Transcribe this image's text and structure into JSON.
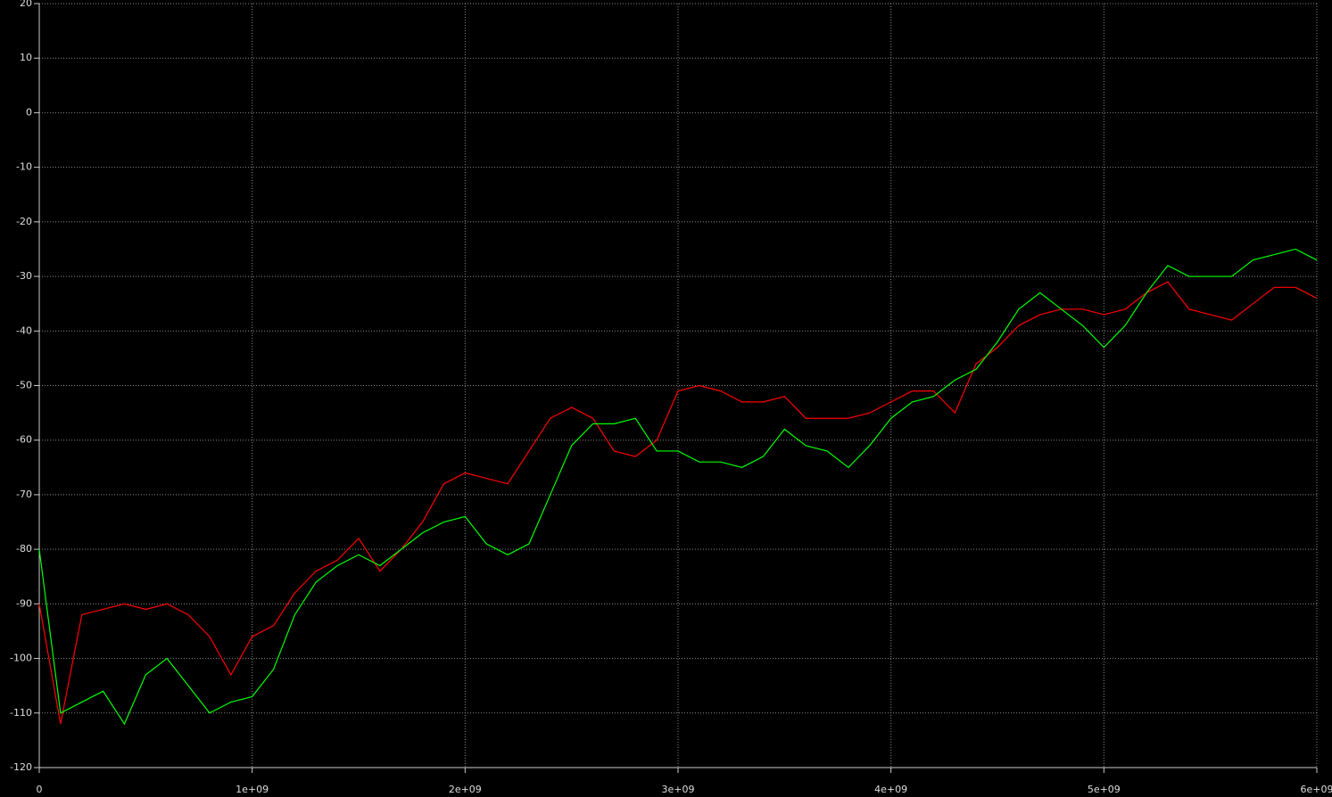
{
  "chart_data": {
    "type": "line",
    "x": [
      0,
      100000000,
      200000000,
      300000000,
      400000000,
      500000000,
      600000000,
      700000000,
      800000000,
      900000000,
      1000000000,
      1100000000,
      1200000000,
      1300000000,
      1400000000,
      1500000000,
      1600000000,
      1700000000,
      1800000000,
      1900000000,
      2000000000,
      2100000000,
      2200000000,
      2300000000,
      2400000000,
      2500000000,
      2600000000,
      2700000000,
      2800000000,
      2900000000,
      3000000000,
      3100000000,
      3200000000,
      3300000000,
      3400000000,
      3500000000,
      3600000000,
      3700000000,
      3800000000,
      3900000000,
      4000000000,
      4100000000,
      4200000000,
      4300000000,
      4400000000,
      4500000000,
      4600000000,
      4700000000,
      4800000000,
      4900000000,
      5000000000,
      5100000000,
      5200000000,
      5300000000,
      5400000000,
      5500000000,
      5600000000,
      5700000000,
      5800000000,
      5900000000,
      6000000000
    ],
    "series": [
      {
        "color": "#ff0000",
        "values": [
          -90,
          -112,
          -92,
          -91,
          -90,
          -91,
          -90,
          -92,
          -96,
          -103,
          -96,
          -94,
          -88,
          -84,
          -82,
          -78,
          -84,
          -80,
          -75,
          -68,
          -66,
          -67,
          -68,
          -62,
          -56,
          -54,
          -56,
          -62,
          -63,
          -60,
          -51,
          -50,
          -51,
          -53,
          -53,
          -52,
          -56,
          -56,
          -56,
          -55,
          -53,
          -51,
          -51,
          -55,
          -46,
          -43,
          -39,
          -37,
          -36,
          -36,
          -37,
          -36,
          -33,
          -31,
          -36,
          -37,
          -38,
          -35,
          -32,
          -32,
          -34
        ]
      },
      {
        "color": "#00ff00",
        "values": [
          -80,
          -110,
          -108,
          -106,
          -112,
          -103,
          -100,
          -105,
          -110,
          -108,
          -107,
          -102,
          -92,
          -86,
          -83,
          -81,
          -83,
          -80,
          -77,
          -75,
          -74,
          -79,
          -81,
          -79,
          -70,
          -61,
          -57,
          -57,
          -56,
          -62,
          -62,
          -64,
          -64,
          -65,
          -63,
          -58,
          -61,
          -62,
          -65,
          -61,
          -56,
          -53,
          -52,
          -49,
          -47,
          -42,
          -36,
          -33,
          -36,
          -39,
          -43,
          -39,
          -33,
          -28,
          -30,
          -30,
          -30,
          -27,
          -26,
          -25,
          -27
        ]
      }
    ],
    "xlim": [
      0,
      6000000000
    ],
    "xticks": [
      0,
      {
        "value": 1000000000,
        "label": "1e+09"
      },
      {
        "value": 2000000000,
        "label": "2e+09"
      },
      {
        "value": 3000000000,
        "label": "3e+09"
      },
      {
        "value": 4000000000,
        "label": "4e+09"
      },
      {
        "value": 5000000000,
        "label": "5e+09"
      },
      {
        "value": 6000000000,
        "label": "6e+09"
      }
    ],
    "ylim": [
      -120,
      20
    ],
    "yticks": [
      -120,
      -110,
      -100,
      -90,
      -80,
      -70,
      -60,
      -50,
      -40,
      -30,
      -20,
      -10,
      0,
      10,
      20
    ],
    "grid": true
  }
}
